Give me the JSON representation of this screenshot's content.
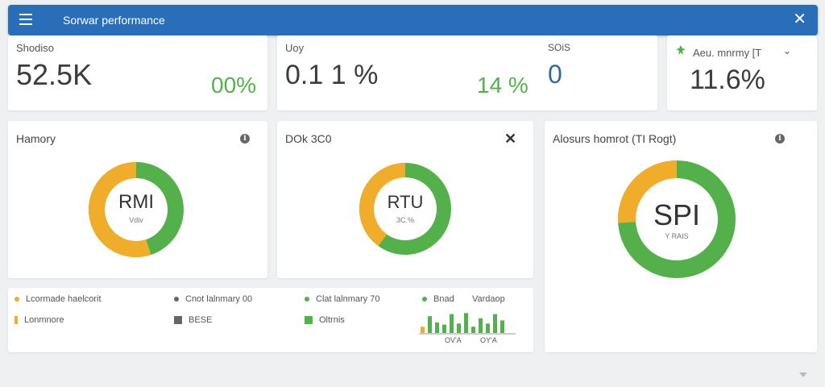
{
  "header": {
    "title": "Sorwar performance",
    "menu_icon": "hamburger-menu-icon",
    "close_icon": "close-icon"
  },
  "colors": {
    "primary": "#2a6db8",
    "green": "#54b04a",
    "orange": "#f0ad2c",
    "gray": "#666666"
  },
  "stats": {
    "card1": {
      "label": "Shodiso",
      "value": "52.5K",
      "pct": "00%"
    },
    "card2": {
      "label": "Uoy",
      "value": "0.1 1 %",
      "pct": "14 %",
      "sub_label": "SOiS",
      "sub_value": "0"
    },
    "card3": {
      "label": "Aeu. mnrmy [T",
      "value": "11.6%"
    }
  },
  "panels": {
    "memory": {
      "title": "Hamory",
      "center": "RMI",
      "sub": "Vdiv",
      "orange_fraction": 0.55
    },
    "disk": {
      "title": "DOk 3C0",
      "center": "RTU",
      "sub": "3C.%",
      "orange_fraction": 0.4
    },
    "network": {
      "title": "Alosurs homrot (TI Rogt)",
      "center": "SPI",
      "sub": "Y RAIS",
      "orange_fraction": 0.26
    }
  },
  "legend": {
    "row1": [
      "Lcormade haelcorit",
      "Cnot lalnmary 00",
      "Clat lalnmary 70",
      "Bnad",
      "Vardaop"
    ],
    "row2": [
      "Lonmnore",
      "BESE",
      "Oltrnis"
    ],
    "mini_chart": {
      "labels": [
        "OV'A",
        "OY'A"
      ],
      "values": [
        0.3,
        0.8,
        0.5,
        0.4,
        0.9,
        0.45,
        0.95,
        0.3,
        0.7,
        0.45,
        0.9,
        0.6
      ]
    }
  }
}
